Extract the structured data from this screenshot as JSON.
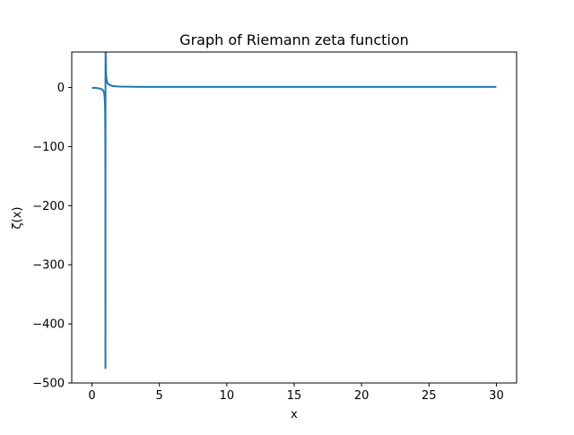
{
  "chart_data": {
    "type": "line",
    "title": "Graph of Riemann zeta function",
    "xlabel": "x",
    "ylabel": "ζ(x)",
    "xlim": [
      -1.5,
      31.5
    ],
    "ylim": [
      -500,
      60
    ],
    "xticks": [
      0,
      5,
      10,
      15,
      20,
      25,
      30
    ],
    "xtick_labels": [
      "0",
      "5",
      "10",
      "15",
      "20",
      "25",
      "30"
    ],
    "yticks": [
      0,
      -100,
      -200,
      -300,
      -400,
      -500
    ],
    "ytick_labels": [
      "0",
      "−100",
      "−200",
      "−300",
      "−400",
      "−500"
    ],
    "grid": false,
    "legend": "none",
    "color": "#1f77b4",
    "series": [
      {
        "x": [
          0.0,
          0.2,
          0.4,
          0.5,
          0.6,
          0.7,
          0.8,
          0.85,
          0.9,
          0.93,
          0.95,
          0.97,
          0.98,
          0.99,
          0.992,
          0.995,
          0.998,
          1.0,
          1.003,
          1.007,
          1.01,
          1.02,
          1.03,
          1.05,
          1.1,
          1.2,
          1.5,
          2.0,
          2.5,
          3.0,
          4.0,
          5.0,
          6.0,
          8.0,
          10.0,
          15.0,
          20.0,
          25.0,
          30.0
        ],
        "y": [
          -0.5,
          -0.73,
          -1.13,
          -1.46,
          -1.95,
          -2.78,
          -4.44,
          -6.11,
          -9.43,
          -13.8,
          -19.4,
          -32.8,
          -49.4,
          -99.4,
          -124.4,
          -199.4,
          -475,
          -475,
          37,
          37,
          100.6,
          50.6,
          33.9,
          20.6,
          10.58,
          5.59,
          2.61,
          1.645,
          1.34,
          1.202,
          1.082,
          1.037,
          1.017,
          1.004,
          1.001,
          1.0,
          1.0,
          1.0,
          1.0
        ]
      }
    ]
  }
}
